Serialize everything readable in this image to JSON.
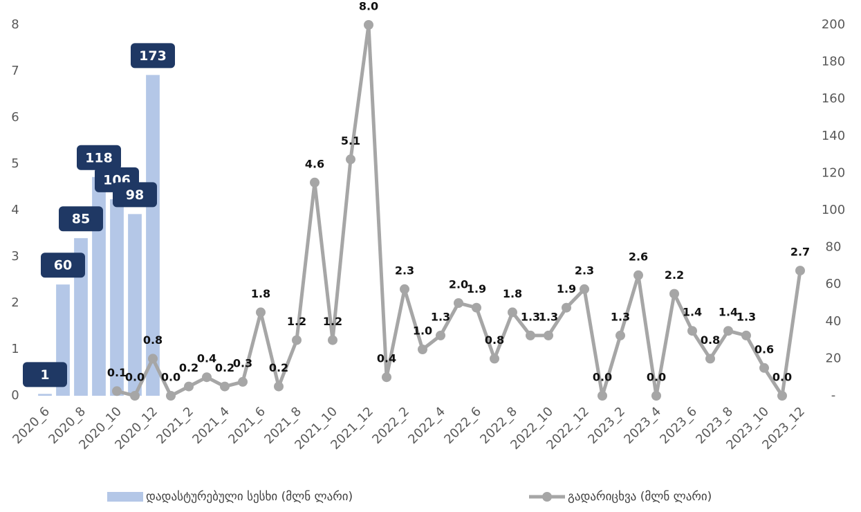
{
  "chart_data": {
    "type": "combo",
    "categories": [
      "2020_6",
      null,
      "2020_8",
      null,
      "2020_10",
      null,
      "2020_12",
      null,
      "2021_2",
      null,
      "2021_4",
      null,
      "2021_6",
      null,
      "2021_8",
      null,
      "2021_10",
      null,
      "2021_12",
      null,
      "2022_2",
      null,
      "2022_4",
      null,
      "2022_6",
      null,
      "2022_8",
      null,
      "2022_10",
      null,
      "2022_12",
      null,
      "2023_2",
      null,
      "2023_4",
      null,
      "2023_6",
      null,
      "2023_8",
      null,
      "2023_10",
      null,
      "2023_12"
    ],
    "series": [
      {
        "name": "დადასტურებული სესხი (მლნ ლარი)",
        "type": "bar",
        "axis": "y2",
        "color": "#b4c7e7",
        "label_color": "#1f3864",
        "values": [
          1,
          60,
          85,
          118,
          106,
          98,
          173,
          null,
          null,
          null,
          null,
          null,
          null,
          null,
          null,
          null,
          null,
          null,
          null,
          null,
          null,
          null,
          null,
          null,
          null,
          null,
          null,
          null,
          null,
          null,
          null,
          null,
          null,
          null,
          null,
          null,
          null,
          null,
          null,
          null,
          null,
          null,
          null
        ]
      },
      {
        "name": "გადარიცხვა (მლნ ლარი)",
        "type": "line",
        "color": "#a6a6a6",
        "values": [
          null,
          null,
          null,
          null,
          0.1,
          0.0,
          0.8,
          0.0,
          0.2,
          0.4,
          0.2,
          0.3,
          1.8,
          0.2,
          1.2,
          4.6,
          1.2,
          5.1,
          8.0,
          0.4,
          2.3,
          1.0,
          1.3,
          2.0,
          1.9,
          0.8,
          1.8,
          1.3,
          1.3,
          1.9,
          2.3,
          0.0,
          1.3,
          2.6,
          0.0,
          2.2,
          1.4,
          0.8,
          1.4,
          1.3,
          0.6,
          0.0,
          2.7
        ],
        "value_labels": [
          null,
          null,
          null,
          null,
          "0.1",
          "0.0",
          "0.8",
          "0.0",
          "0.2",
          "0.4",
          "0.2",
          "0.3",
          "1.8",
          "0.2",
          "1.2",
          "4.6",
          "1.2",
          "5.1",
          "8.0",
          "0.4",
          "2.3",
          "1.0",
          "1.3",
          "2.0",
          "1.9",
          "0.8",
          "1.8",
          "1.3",
          "1.3",
          "1.9",
          "2.3",
          "0.0",
          "1.3",
          "2.6",
          "0.0",
          "2.2",
          "1.4",
          "0.8",
          "1.4",
          "1.3",
          "0.6",
          "0.0",
          "2.7"
        ]
      }
    ],
    "ylim": [
      0,
      8
    ],
    "yticks": [
      0,
      1,
      2,
      3,
      4,
      5,
      6,
      7,
      8
    ],
    "y2lim": [
      0,
      200
    ],
    "y2ticks": [
      {
        "value": 0,
        "label": "-"
      },
      20,
      40,
      60,
      80,
      100,
      120,
      140,
      160,
      180,
      200
    ],
    "legend": "bottom"
  }
}
